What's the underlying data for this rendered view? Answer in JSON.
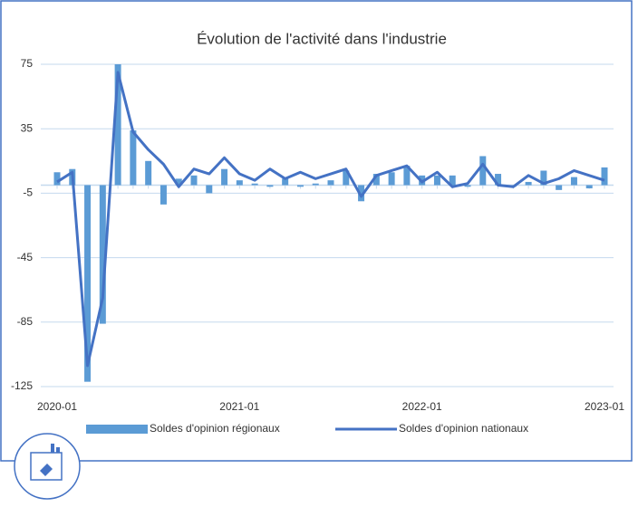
{
  "chart_data": {
    "type": "bar-line",
    "title": "Évolution de l'activité dans l'industrie",
    "categories": [
      "2020-01",
      null,
      null,
      null,
      null,
      null,
      null,
      null,
      null,
      null,
      null,
      null,
      "2021-01",
      null,
      null,
      null,
      null,
      null,
      null,
      null,
      null,
      null,
      null,
      null,
      "2022-01",
      null,
      null,
      null,
      null,
      null,
      null,
      null,
      null,
      null,
      null,
      null,
      "2023-01"
    ],
    "series": [
      {
        "name": "Soldes d'opinion régionaux",
        "kind": "bar",
        "color": "#5b9bd5",
        "values": [
          8,
          10,
          -122,
          -86,
          75,
          34,
          15,
          -12,
          4,
          6,
          -5,
          10,
          3,
          1,
          -1,
          4,
          -1,
          1,
          3,
          9,
          -10,
          7,
          8,
          12,
          6,
          6,
          6,
          -1,
          18,
          7,
          -1,
          2,
          9,
          -3,
          5,
          -2,
          11
        ]
      },
      {
        "name": "Soldes d'opinion nationaux",
        "kind": "line",
        "color": "#4472c4",
        "values": [
          2,
          8,
          -112,
          -70,
          70,
          33,
          22,
          13,
          -1,
          10,
          7,
          17,
          7,
          3,
          10,
          4,
          8,
          4,
          7,
          10,
          -7,
          6,
          9,
          12,
          2,
          8,
          -1,
          1,
          13,
          0,
          -1,
          6,
          1,
          4,
          9,
          6,
          3
        ]
      }
    ],
    "ylim": [
      -125,
      75
    ],
    "yticks": [
      -125,
      -85,
      -45,
      -5,
      35,
      75
    ],
    "grid": true,
    "legend": "bottom"
  }
}
